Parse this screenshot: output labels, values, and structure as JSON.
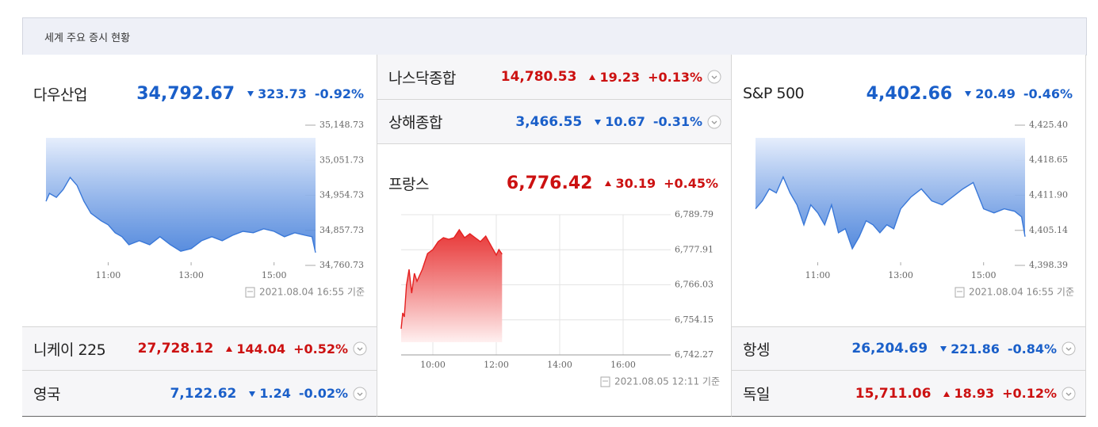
{
  "title": "세계 주요 증시 현황",
  "indices": [
    {
      "name": "다우산업",
      "price": "34,792.67",
      "change": "323.73",
      "change_pct": "-0.92%",
      "color": "#1a5fc9"
    },
    {
      "name": "니케이 225",
      "price": "27,728.12",
      "change": "144.04",
      "change_pct": "+0.52%",
      "color": "#cc1111"
    },
    {
      "name": "영국",
      "price": "7,122.62",
      "change": "1.24",
      "change_pct": "-0.02%",
      "color": "#1a5fc9"
    },
    {
      "name": "나스닥종합",
      "price": "14,780.53",
      "change": "19.23",
      "change_pct": "+0.13%",
      "color": "#cc1111"
    },
    {
      "name": "상해종합",
      "price": "3,466.55",
      "change": "10.67",
      "change_pct": "-0.31%",
      "color": "#1a5fc9"
    },
    {
      "name": "프랑스",
      "price": "6,776.42",
      "change": "30.19",
      "change_pct": "+0.45%",
      "color": "#cc1111"
    },
    {
      "name": "S&P 500",
      "price": "4,402.66",
      "change": "20.49",
      "change_pct": "-0.46%",
      "color": "#1a5fc9"
    },
    {
      "name": "항셍",
      "price": "26,204.69",
      "change": "221.86",
      "change_pct": "-0.84%",
      "color": "#1a5fc9"
    },
    {
      "name": "독일",
      "price": "15,711.06",
      "change": "18.93",
      "change_pct": "+0.12%",
      "color": "#cc1111"
    }
  ],
  "chart_data": [
    {
      "type": "line",
      "color": "#3a78d8",
      "fill": "above",
      "grid": false,
      "footnote": "2021.08.04 16:55 기준",
      "x": [
        "09:30",
        "09:35",
        "09:45",
        "09:55",
        "10:05",
        "10:15",
        "10:25",
        "10:35",
        "10:50",
        "11:00",
        "11:10",
        "11:20",
        "11:30",
        "11:45",
        "12:00",
        "12:15",
        "12:30",
        "12:45",
        "13:00",
        "13:15",
        "13:30",
        "13:45",
        "14:00",
        "14:15",
        "14:30",
        "14:45",
        "15:00",
        "15:15",
        "15:30",
        "15:45",
        "15:55",
        "16:00"
      ],
      "values": [
        34938,
        34960,
        34949,
        34971,
        35004,
        34982,
        34938,
        34905,
        34884,
        34873,
        34851,
        34840,
        34818,
        34829,
        34818,
        34840,
        34818,
        34800,
        34807,
        34829,
        34840,
        34829,
        34844,
        34855,
        34851,
        34862,
        34855,
        34840,
        34851,
        34844,
        34840,
        34796
      ],
      "xlim": [
        "09:30",
        "16:00"
      ],
      "xticks": [
        "11:00",
        "13:00",
        "15:00"
      ],
      "ylim": [
        34760.73,
        35148.73
      ],
      "yticks": [
        {
          "value": 35148.73,
          "label": "35,148.73"
        },
        {
          "value": 35051.73,
          "label": "35,051.73"
        },
        {
          "value": 34954.73,
          "label": "34,954.73"
        },
        {
          "value": 34857.73,
          "label": "34,857.73"
        },
        {
          "value": 34760.73,
          "label": "34,760.73"
        }
      ]
    },
    {
      "type": "line",
      "color": "#e52020",
      "fill": "below",
      "grid": true,
      "footnote": "2021.08.05 12:11 기준",
      "x": [
        "09:00",
        "09:03",
        "09:06",
        "09:10",
        "09:15",
        "09:20",
        "09:25",
        "09:30",
        "09:40",
        "09:50",
        "10:00",
        "10:10",
        "10:20",
        "10:30",
        "10:40",
        "10:50",
        "11:00",
        "11:10",
        "11:20",
        "11:30",
        "11:40",
        "11:50",
        "12:00",
        "12:05",
        "12:11"
      ],
      "values": [
        6751.13,
        6756.5,
        6755.15,
        6765.89,
        6771.26,
        6763.21,
        6769.92,
        6767.24,
        6771.26,
        6776.63,
        6777.98,
        6780.66,
        6782.0,
        6781.47,
        6782.0,
        6784.69,
        6782.0,
        6783.35,
        6782.0,
        6780.66,
        6782.54,
        6779.32,
        6776.1,
        6777.98,
        6776.42
      ],
      "xlim": [
        "09:00",
        "17:30"
      ],
      "xticks": [
        "10:00",
        "12:00",
        "14:00",
        "16:00"
      ],
      "ylim": [
        6742.27,
        6789.79
      ],
      "yticks": [
        {
          "value": 6789.79,
          "label": "6,789.79"
        },
        {
          "value": 6777.91,
          "label": "6,777.91"
        },
        {
          "value": 6766.03,
          "label": "6,766.03"
        },
        {
          "value": 6754.15,
          "label": "6,754.15"
        },
        {
          "value": 6742.27,
          "label": "6,742.27"
        }
      ]
    },
    {
      "type": "line",
      "color": "#3a78d8",
      "fill": "above",
      "grid": false,
      "footnote": "2021.08.04 16:55 기준",
      "x": [
        "09:30",
        "09:40",
        "09:50",
        "10:00",
        "10:10",
        "10:20",
        "10:30",
        "10:40",
        "10:50",
        "11:00",
        "11:10",
        "11:20",
        "11:30",
        "11:40",
        "11:50",
        "12:00",
        "12:10",
        "12:20",
        "12:30",
        "12:40",
        "12:50",
        "13:00",
        "13:15",
        "13:30",
        "13:45",
        "14:00",
        "14:15",
        "14:30",
        "14:45",
        "15:00",
        "15:15",
        "15:30",
        "15:45",
        "15:55",
        "16:00"
      ],
      "values": [
        4409.28,
        4410.82,
        4413.12,
        4412.35,
        4415.42,
        4412.35,
        4410.05,
        4406.21,
        4410.05,
        4408.51,
        4406.21,
        4410.05,
        4404.68,
        4405.44,
        4401.61,
        4403.91,
        4406.98,
        4406.21,
        4404.68,
        4406.21,
        4405.44,
        4409.28,
        4411.58,
        4413.12,
        4410.82,
        4410.05,
        4411.58,
        4413.12,
        4414.35,
        4409.28,
        4408.51,
        4409.28,
        4408.82,
        4407.75,
        4403.91
      ],
      "xlim": [
        "09:30",
        "16:00"
      ],
      "xticks": [
        "11:00",
        "13:00",
        "15:00"
      ],
      "ylim": [
        4398.39,
        4425.4
      ],
      "yticks": [
        {
          "value": 4425.4,
          "label": "4,425.40"
        },
        {
          "value": 4418.65,
          "label": "4,418.65"
        },
        {
          "value": 4411.9,
          "label": "4,411.90"
        },
        {
          "value": 4405.14,
          "label": "4,405.14"
        },
        {
          "value": 4398.39,
          "label": "4,398.39"
        }
      ]
    }
  ]
}
